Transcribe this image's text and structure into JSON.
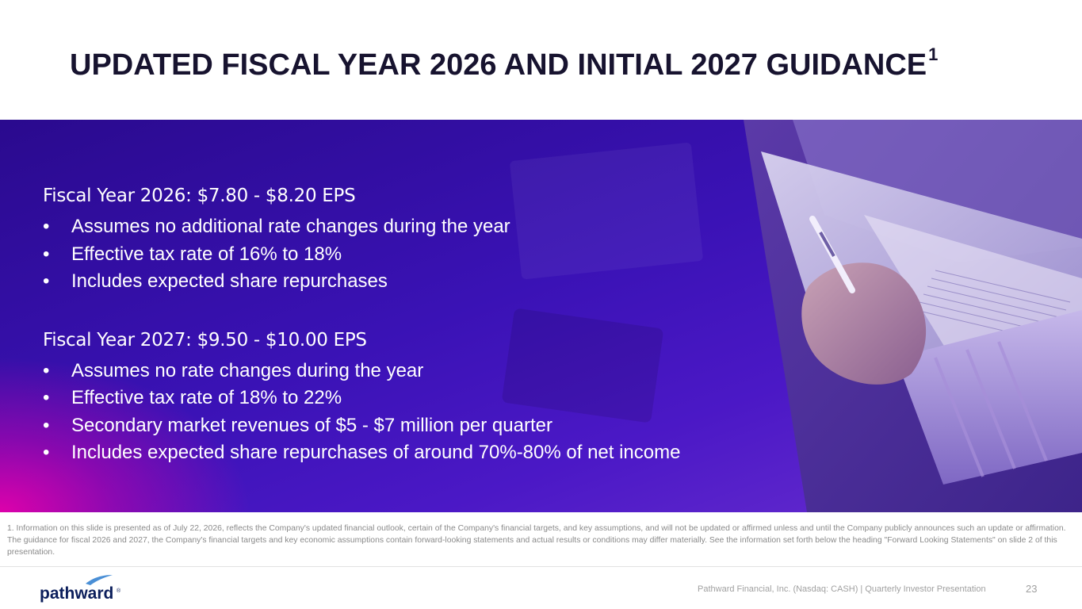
{
  "slide": {
    "title": "UPDATED FISCAL YEAR 2026 AND INITIAL 2027 GUIDANCE",
    "title_superscript": "1"
  },
  "guidance": [
    {
      "heading": "Fiscal Year 2026: $7.80 - $8.20 EPS",
      "bullets": [
        "Assumes no additional rate changes during the year",
        "Effective tax rate of 16% to 18%",
        "Includes expected share repurchases"
      ]
    },
    {
      "heading": "Fiscal Year 2027: $9.50 - $10.00 EPS",
      "bullets": [
        "Assumes no rate changes during the year",
        "Effective tax rate of 18% to 22%",
        "Secondary market revenues of $5 - $7 million per quarter",
        "Includes expected share repurchases of around 70%-80% of net income"
      ]
    }
  ],
  "bullet_glyph": "•",
  "footnote": "1. Information on this slide is presented as of July 22, 2026, reflects the Company's updated financial outlook, certain of the Company's financial targets, and key assumptions, and will not be updated or affirmed unless and until the Company publicly announces such an update or affirmation. The guidance for fiscal 2026 and 2027, the Company's financial targets and key economic assumptions contain forward-looking statements and actual results or conditions may differ materially. See the information set forth below the heading \"Forward Looking Statements\" on slide 2 of this presentation.",
  "footer": {
    "logo_text": "pathward",
    "logo_mark": "®",
    "text": "Pathward Financial, Inc. (Nasdaq: CASH) | Quarterly Investor Presentation",
    "page_number": "23"
  },
  "colors": {
    "title": "#17132f",
    "banner_primary": "#3a12b5",
    "banner_accent": "#e600aa",
    "logo_navy": "#0c1f5c",
    "logo_accent": "#4a8fd6",
    "muted_text": "#8a8a8a"
  }
}
